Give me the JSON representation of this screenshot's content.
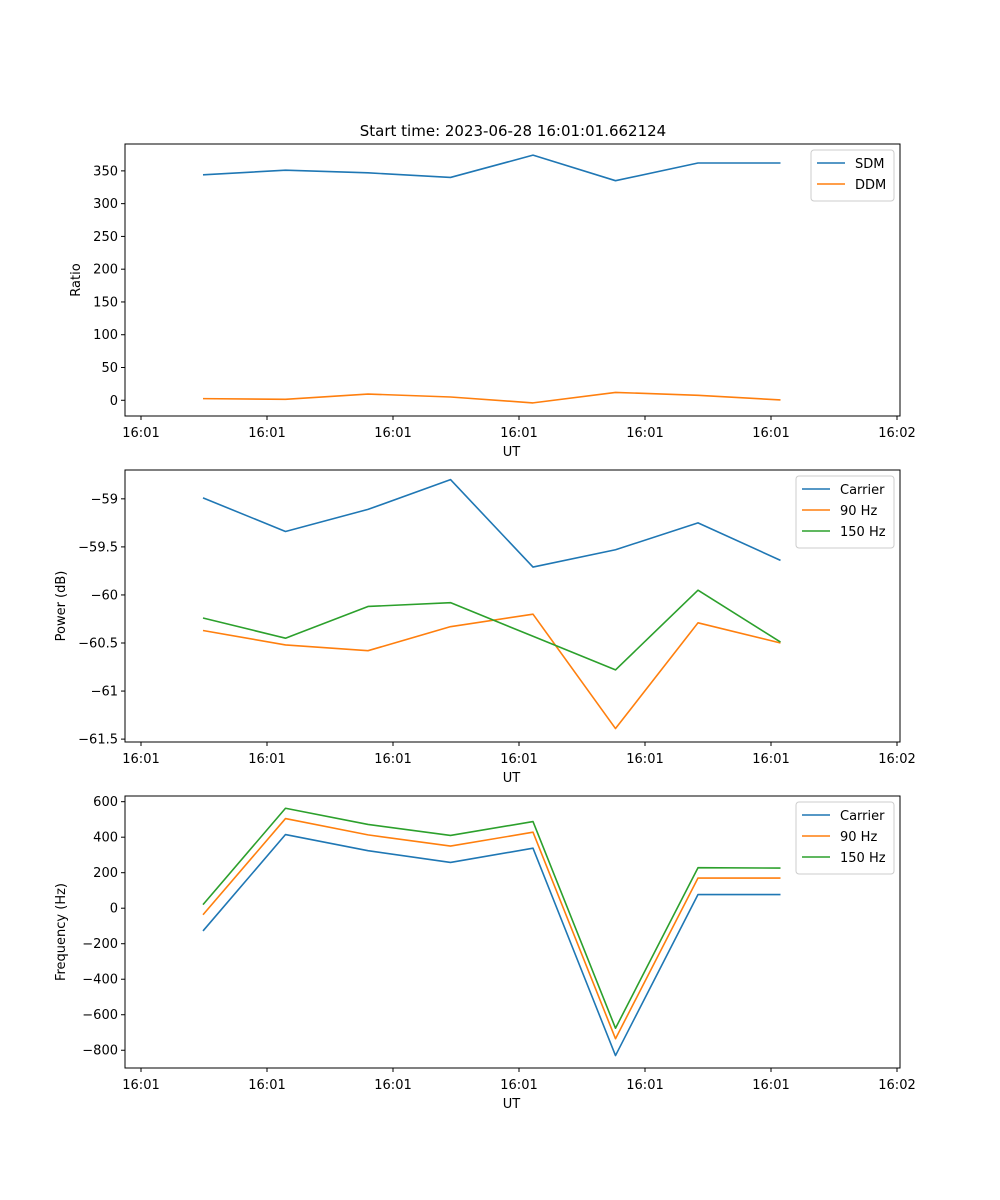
{
  "figure_title": "Start time: 2023-06-28 16:01:01.662124",
  "colors": {
    "series1": "#1f77b4",
    "series2": "#ff7f0e",
    "series3": "#2ca02c",
    "axis": "#000000",
    "background": "#ffffff"
  },
  "chart_data": [
    {
      "type": "line",
      "title": "Start time: 2023-06-28 16:01:01.662124",
      "xlabel": "UT",
      "ylabel": "Ratio",
      "x_tick_labels": [
        "16:01",
        "16:01",
        "16:01",
        "16:01",
        "16:01",
        "16:01",
        "16:02"
      ],
      "y_ticks": [
        0,
        50,
        100,
        150,
        200,
        250,
        300,
        350
      ],
      "ylim": [
        -24,
        391
      ],
      "legend_position": "top-right",
      "grid": false,
      "series": [
        {
          "name": "SDM",
          "values": [
            344,
            351,
            347,
            340,
            374,
            335,
            362,
            362
          ]
        },
        {
          "name": "DDM",
          "values": [
            2.5,
            1.5,
            9.5,
            5,
            -4,
            12,
            7.5,
            0.5
          ]
        }
      ]
    },
    {
      "type": "line",
      "title": "",
      "xlabel": "UT",
      "ylabel": "Power (dB)",
      "x_tick_labels": [
        "16:01",
        "16:01",
        "16:01",
        "16:01",
        "16:01",
        "16:01",
        "16:02"
      ],
      "y_ticks": [
        -59.0,
        -59.5,
        -60.0,
        -60.5,
        -61.0,
        -61.5
      ],
      "ylim": [
        -61.53,
        -58.7
      ],
      "legend_position": "top-right",
      "grid": false,
      "series": [
        {
          "name": "Carrier",
          "values": [
            -58.99,
            -59.34,
            -59.11,
            -58.8,
            -59.71,
            -59.53,
            -59.25,
            -59.64
          ]
        },
        {
          "name": "90 Hz",
          "values": [
            -60.37,
            -60.52,
            -60.58,
            -60.33,
            -60.2,
            -61.39,
            -60.29,
            -60.5
          ]
        },
        {
          "name": "150 Hz",
          "values": [
            -60.24,
            -60.45,
            -60.12,
            -60.08,
            -60.43,
            -60.78,
            -59.95,
            -60.49
          ]
        }
      ]
    },
    {
      "type": "line",
      "title": "",
      "xlabel": "UT",
      "ylabel": "Frequency (Hz)",
      "x_tick_labels": [
        "16:01",
        "16:01",
        "16:01",
        "16:01",
        "16:01",
        "16:01",
        "16:02"
      ],
      "y_ticks": [
        600,
        400,
        200,
        0,
        -200,
        -400,
        -600,
        -800
      ],
      "ylim": [
        -900,
        632
      ],
      "legend_position": "top-right",
      "grid": false,
      "series": [
        {
          "name": "Carrier",
          "values": [
            -128,
            415,
            324,
            258,
            338,
            -830,
            77,
            77
          ]
        },
        {
          "name": "90 Hz",
          "values": [
            -37,
            505,
            413,
            350,
            428,
            -735,
            170,
            170
          ]
        },
        {
          "name": "150 Hz",
          "values": [
            20,
            563,
            472,
            410,
            488,
            -676,
            228,
            226
          ]
        }
      ]
    }
  ]
}
